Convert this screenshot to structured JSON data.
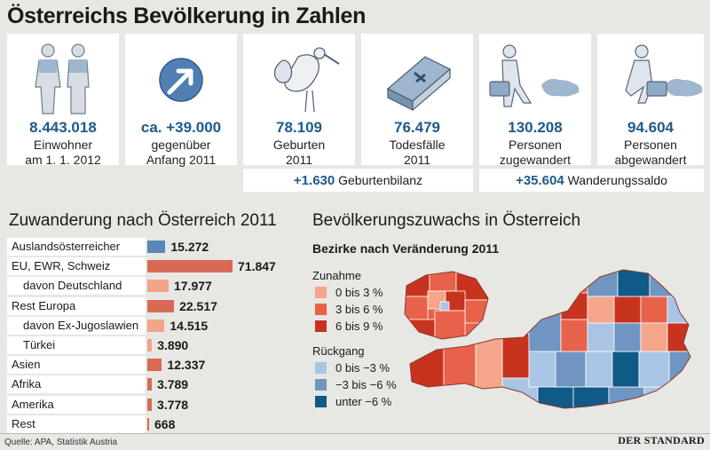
{
  "title": "Österreichs Bevölkerung in Zahlen",
  "stats": [
    {
      "icon": "couple-icon",
      "value": "8.443.018",
      "line1": "Einwohner",
      "line2": "am 1. 1. 2012"
    },
    {
      "icon": "arrow-up-right-icon",
      "value": "ca. +39.000",
      "line1": "gegenüber",
      "line2": "Anfang 2011"
    },
    {
      "icon": "stork-icon",
      "value": "78.109",
      "line1": "Geburten",
      "line2": "2011"
    },
    {
      "icon": "coffin-icon",
      "value": "76.479",
      "line1": "Todesfälle",
      "line2": "2011"
    },
    {
      "icon": "immigrant-icon",
      "value": "130.208",
      "line1": "Personen",
      "line2": "zugewandert"
    },
    {
      "icon": "emigrant-icon",
      "value": "94.604",
      "line1": "Personen",
      "line2": "abgewandert"
    }
  ],
  "balances": [
    {
      "value": "+1.630",
      "label": "Geburtenbilanz"
    },
    {
      "value": "+35.604",
      "label": "Wanderungssaldo"
    }
  ],
  "migration_title": "Zuwanderung nach Österreich 2011",
  "map_title": "Bevölkerungszuwachs in Österreich",
  "map_subtitle": "Bezirke nach Veränderung 2011",
  "legend": {
    "increase_title": "Zunahme",
    "decrease_title": "Rückgang",
    "increase": [
      {
        "label": "0 bis 3 %",
        "color": "#f4a58a"
      },
      {
        "label": "3 bis 6 %",
        "color": "#e8614a"
      },
      {
        "label": "6 bis 9 %",
        "color": "#c8331f"
      }
    ],
    "decrease": [
      {
        "label": "0 bis −3 %",
        "color": "#a9c4e4"
      },
      {
        "label": "−3 bis −6 %",
        "color": "#6f95c2"
      },
      {
        "label": "unter −6 %",
        "color": "#0f5a86"
      }
    ]
  },
  "chart_data": {
    "type": "bar",
    "orientation": "horizontal",
    "title": "Zuwanderung nach Österreich 2011",
    "categories": [
      "Auslandsösterreicher",
      "EU, EWR, Schweiz",
      "davon Deutschland",
      "Rest Europa",
      "davon Ex-Jugoslawien",
      "Türkei",
      "Asien",
      "Afrika",
      "Amerika",
      "Rest"
    ],
    "values": [
      15272,
      71847,
      17977,
      22517,
      14515,
      3890,
      12337,
      3789,
      3778,
      668
    ],
    "value_labels": [
      "15.272",
      "71.847",
      "17.977",
      "22.517",
      "14.515",
      "3.890",
      "12.337",
      "3.789",
      "3.778",
      "668"
    ],
    "sub_category": [
      false,
      false,
      true,
      false,
      true,
      true,
      false,
      false,
      false,
      false
    ],
    "bar_colors": [
      "#5b86b5",
      "#d86a55",
      "#f2a48a",
      "#d86a55",
      "#f2a48a",
      "#f2a48a",
      "#d86a55",
      "#d86a55",
      "#d86a55",
      "#d86a55"
    ]
  },
  "source": "Quelle: APA, Statistik Austria",
  "brand": "DER STANDARD"
}
